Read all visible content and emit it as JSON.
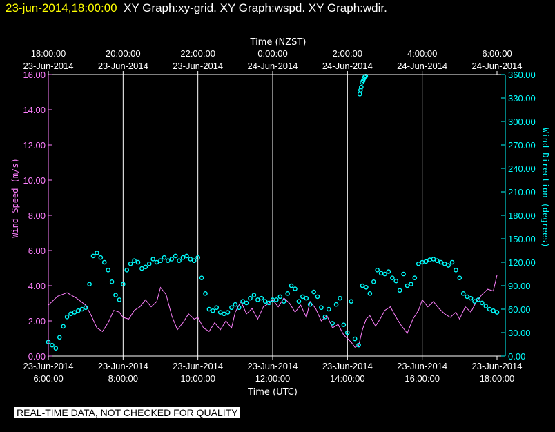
{
  "header": {
    "time": "23-jun-2014,18:00:00",
    "rest": "XY Graph:xy-grid.  XY Graph:wspd.  XY Graph:wdir."
  },
  "footer": {
    "note": "REAL-TIME DATA, NOT CHECKED FOR QUALITY"
  },
  "colors": {
    "speed": "#ff80ff",
    "direction": "#00ffff",
    "axes": "#ffffff",
    "grid": "#ffffff"
  },
  "chart_data": {
    "type": "scatter",
    "title": "",
    "top_axis_label": "Time (NZST)",
    "xlabel": "Time (UTC)",
    "ylabel_left": "Wind Speed (m/s)",
    "ylabel_right": "Wind Direction (degrees)",
    "xlim_hours_utc": [
      6,
      18
    ],
    "ylim_left": [
      0,
      16
    ],
    "ylim_right": [
      0,
      360
    ],
    "grid": "vertical",
    "bottom_ticks": [
      {
        "hour": 6,
        "date": "23-Jun-2014",
        "time": "6:00:00"
      },
      {
        "hour": 8,
        "date": "23-Jun-2014",
        "time": "8:00:00"
      },
      {
        "hour": 10,
        "date": "23-Jun-2014",
        "time": "10:00:00"
      },
      {
        "hour": 12,
        "date": "23-Jun-2014",
        "time": "12:00:00"
      },
      {
        "hour": 14,
        "date": "23-Jun-2014",
        "time": "14:00:00"
      },
      {
        "hour": 16,
        "date": "23-Jun-2014",
        "time": "16:00:00"
      },
      {
        "hour": 18,
        "date": "23-Jun-2014",
        "time": "18:00:00"
      }
    ],
    "top_ticks": [
      {
        "hour": 6,
        "time": "18:00:00",
        "date": "23-Jun-2014"
      },
      {
        "hour": 8,
        "time": "20:00:00",
        "date": "23-Jun-2014"
      },
      {
        "hour": 10,
        "time": "22:00:00",
        "date": "23-Jun-2014"
      },
      {
        "hour": 12,
        "time": "0:00:00",
        "date": "24-Jun-2014"
      },
      {
        "hour": 14,
        "time": "2:00:00",
        "date": "24-Jun-2014"
      },
      {
        "hour": 16,
        "time": "4:00:00",
        "date": "24-Jun-2014"
      },
      {
        "hour": 18,
        "time": "6:00:00",
        "date": "24-Jun-2014"
      }
    ],
    "left_ticks": [
      "0.00",
      "2.00",
      "4.00",
      "6.00",
      "8.00",
      "10.00",
      "12.00",
      "14.00",
      "16.00"
    ],
    "right_ticks": [
      "0.00",
      "30.00",
      "60.00",
      "90.00",
      "120.00",
      "150.00",
      "180.00",
      "210.00",
      "240.00",
      "270.00",
      "300.00",
      "330.00",
      "360.00"
    ],
    "series": [
      {
        "name": "wspd",
        "style": "line",
        "x": [
          6.0,
          6.25,
          6.5,
          6.75,
          7.0,
          7.15,
          7.3,
          7.45,
          7.6,
          7.75,
          7.9,
          8.0,
          8.15,
          8.3,
          8.45,
          8.6,
          8.75,
          8.9,
          9.0,
          9.15,
          9.3,
          9.45,
          9.6,
          9.75,
          9.9,
          10.0,
          10.15,
          10.3,
          10.45,
          10.6,
          10.75,
          10.9,
          11.0,
          11.15,
          11.3,
          11.45,
          11.6,
          11.75,
          11.9,
          12.0,
          12.15,
          12.3,
          12.45,
          12.6,
          12.75,
          12.9,
          13.0,
          13.15,
          13.3,
          13.45,
          13.6,
          13.75,
          13.9,
          14.0,
          14.1,
          14.2,
          14.3,
          14.4,
          14.5,
          14.6,
          14.75,
          14.9,
          15.0,
          15.15,
          15.3,
          15.45,
          15.6,
          15.75,
          15.9,
          16.0,
          16.15,
          16.3,
          16.45,
          16.6,
          16.75,
          16.9,
          17.0,
          17.15,
          17.3,
          17.45,
          17.6,
          17.75,
          17.9,
          18.0
        ],
        "values": [
          2.9,
          3.4,
          3.6,
          3.3,
          2.9,
          2.3,
          1.6,
          1.4,
          1.9,
          2.6,
          2.5,
          2.2,
          2.1,
          2.6,
          2.8,
          3.2,
          2.8,
          3.1,
          3.9,
          3.5,
          2.3,
          1.5,
          1.9,
          2.4,
          2.1,
          2.2,
          1.6,
          1.4,
          1.9,
          1.5,
          2.0,
          1.6,
          2.5,
          3.1,
          2.4,
          2.7,
          2.1,
          2.8,
          3.0,
          3.2,
          2.8,
          3.3,
          3.0,
          2.5,
          2.9,
          2.2,
          3.1,
          2.7,
          2.0,
          2.3,
          1.6,
          1.8,
          1.2,
          1.0,
          0.8,
          0.5,
          0.6,
          1.5,
          2.1,
          2.3,
          1.7,
          2.2,
          2.6,
          2.8,
          2.2,
          1.7,
          1.3,
          2.1,
          2.6,
          3.2,
          2.8,
          3.1,
          2.7,
          2.4,
          2.2,
          2.5,
          2.1,
          2.8,
          2.5,
          3.1,
          3.5,
          3.8,
          3.7,
          4.6
        ]
      },
      {
        "name": "wdir",
        "style": "circles",
        "x": [
          6.0,
          6.1,
          6.2,
          6.3,
          6.4,
          6.5,
          6.6,
          6.7,
          6.8,
          6.9,
          7.0,
          7.1,
          7.2,
          7.3,
          7.4,
          7.5,
          7.6,
          7.7,
          7.8,
          7.9,
          8.0,
          8.1,
          8.2,
          8.3,
          8.4,
          8.5,
          8.6,
          8.7,
          8.8,
          8.9,
          9.0,
          9.1,
          9.2,
          9.3,
          9.4,
          9.5,
          9.6,
          9.7,
          9.8,
          9.9,
          10.0,
          10.1,
          10.2,
          10.3,
          10.4,
          10.5,
          10.6,
          10.7,
          10.8,
          10.9,
          11.0,
          11.1,
          11.2,
          11.3,
          11.4,
          11.5,
          11.6,
          11.7,
          11.8,
          11.9,
          12.0,
          12.1,
          12.2,
          12.3,
          12.4,
          12.5,
          12.6,
          12.7,
          12.8,
          12.9,
          13.0,
          13.1,
          13.2,
          13.3,
          13.4,
          13.5,
          13.6,
          13.7,
          13.8,
          13.9,
          14.0,
          14.1,
          14.2,
          14.3,
          14.4,
          14.5,
          14.6,
          14.7,
          14.8,
          14.9,
          15.0,
          15.1,
          15.2,
          15.3,
          15.4,
          15.5,
          15.6,
          15.7,
          15.8,
          15.9,
          16.0,
          16.1,
          16.2,
          16.3,
          16.4,
          16.5,
          16.6,
          16.7,
          16.8,
          16.9,
          17.0,
          17.1,
          17.2,
          17.3,
          17.4,
          17.5,
          17.6,
          17.7,
          17.8,
          17.9,
          18.0
        ],
        "values": [
          18,
          14,
          10,
          24,
          38,
          50,
          54,
          56,
          58,
          60,
          62,
          92,
          128,
          132,
          126,
          120,
          110,
          95,
          78,
          72,
          92,
          110,
          118,
          122,
          120,
          112,
          114,
          118,
          124,
          120,
          122,
          126,
          122,
          124,
          128,
          122,
          126,
          128,
          124,
          122,
          126,
          100,
          80,
          60,
          58,
          62,
          56,
          54,
          56,
          62,
          66,
          62,
          70,
          68,
          74,
          78,
          72,
          74,
          70,
          68,
          72,
          72,
          76,
          70,
          80,
          90,
          86,
          70,
          76,
          74,
          66,
          82,
          76,
          62,
          50,
          60,
          42,
          66,
          74,
          40,
          30,
          70,
          22,
          14,
          90,
          88,
          80,
          95,
          110,
          106,
          105,
          108,
          100,
          96,
          84,
          105,
          90,
          92,
          100,
          118,
          120,
          121,
          123,
          124,
          122,
          120,
          118,
          116,
          120,
          110,
          100,
          80,
          76,
          74,
          70,
          72,
          68,
          64,
          60,
          58,
          56
        ]
      },
      {
        "name": "wdir-high",
        "style": "circles",
        "x": [
          14.33,
          14.35,
          14.37,
          14.39,
          14.42,
          14.44,
          14.46,
          14.49
        ],
        "values": [
          335,
          340,
          344,
          350,
          352,
          355,
          357,
          358
        ]
      }
    ]
  }
}
